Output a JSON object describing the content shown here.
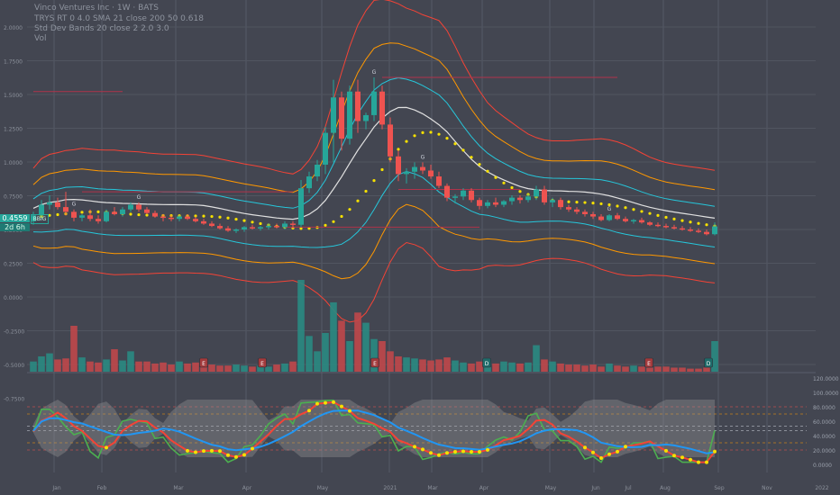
{
  "header": {
    "symbol_line": "Vinco Ventures Inc · 1W · BATS",
    "line2": "TRYS RT 0 4.0 SMA 21 close 200 50 0.618",
    "line3": "Std Dev Bands 20 close 2 2.0 3.0",
    "line4": "Vol"
  },
  "price_tag": {
    "price": "0.4559",
    "ticker": "BBIG",
    "countdown": "2d 6h"
  },
  "colors": {
    "background": "#434651",
    "up": "#26a69a",
    "down": "#ef5350",
    "vol_up": "#2a8a82",
    "vol_down": "#c0474a",
    "band_inner": "#26c6da",
    "band_mid": "#ff9800",
    "band_outer": "#f44336",
    "basis": "#e0e0e0",
    "dots": "#f5e000",
    "osc_green": "#4caf50",
    "osc_red": "#f44336",
    "osc_blue": "#2196f3",
    "osc_cloud": "#9e9e9e"
  },
  "event_marker_letters": [
    "E",
    "E",
    "E",
    "D",
    "E",
    "D"
  ],
  "chart_data": {
    "type": "candlestick",
    "price_axis_labels": [
      "2.0000",
      "1.7500",
      "1.5000",
      "1.2500",
      "1.0000",
      "0.7500",
      "0.5000",
      "0.2500",
      "0.0000",
      "-0.2500",
      "-0.5000",
      "-0.7500"
    ],
    "osc_axis_labels": [
      "120.0000",
      "100.0000",
      "80.0000",
      "60.0000",
      "40.0000",
      "20.0000",
      "0.0000"
    ],
    "time_axis_labels": [
      "Jan",
      "Feb",
      "Mar",
      "Apr",
      "May",
      "2021",
      "Mar",
      "Apr",
      "May",
      "Jun",
      "Jul",
      "Aug",
      "Sep",
      "Nov",
      "2022"
    ],
    "candles": [
      [
        0.5,
        0.58,
        0.47,
        0.55
      ],
      [
        0.55,
        0.68,
        0.52,
        0.64
      ],
      [
        0.64,
        0.72,
        0.6,
        0.66
      ],
      [
        0.66,
        0.7,
        0.6,
        0.62
      ],
      [
        0.62,
        0.75,
        0.55,
        0.58
      ],
      [
        0.58,
        0.6,
        0.5,
        0.53
      ],
      [
        0.53,
        0.56,
        0.5,
        0.55
      ],
      [
        0.55,
        0.6,
        0.5,
        0.52
      ],
      [
        0.52,
        0.55,
        0.48,
        0.5
      ],
      [
        0.5,
        0.6,
        0.49,
        0.58
      ],
      [
        0.58,
        0.62,
        0.55,
        0.56
      ],
      [
        0.56,
        0.62,
        0.54,
        0.6
      ],
      [
        0.6,
        0.66,
        0.58,
        0.64
      ],
      [
        0.64,
        0.66,
        0.58,
        0.6
      ],
      [
        0.6,
        0.62,
        0.56,
        0.57
      ],
      [
        0.57,
        0.59,
        0.53,
        0.54
      ],
      [
        0.54,
        0.56,
        0.5,
        0.53
      ],
      [
        0.53,
        0.55,
        0.5,
        0.52
      ],
      [
        0.52,
        0.55,
        0.5,
        0.54
      ],
      [
        0.54,
        0.56,
        0.51,
        0.52
      ],
      [
        0.52,
        0.54,
        0.49,
        0.5
      ],
      [
        0.5,
        0.52,
        0.47,
        0.48
      ],
      [
        0.48,
        0.5,
        0.45,
        0.46
      ],
      [
        0.46,
        0.48,
        0.43,
        0.44
      ],
      [
        0.44,
        0.46,
        0.41,
        0.42
      ],
      [
        0.42,
        0.44,
        0.4,
        0.43
      ],
      [
        0.43,
        0.46,
        0.41,
        0.45
      ],
      [
        0.45,
        0.47,
        0.43,
        0.44
      ],
      [
        0.44,
        0.46,
        0.42,
        0.45
      ],
      [
        0.45,
        0.48,
        0.43,
        0.46
      ],
      [
        0.46,
        0.48,
        0.44,
        0.45
      ],
      [
        0.45,
        0.5,
        0.43,
        0.48
      ],
      [
        0.48,
        0.5,
        0.44,
        0.47
      ],
      [
        0.47,
        0.85,
        0.45,
        0.78
      ],
      [
        0.78,
        0.92,
        0.74,
        0.88
      ],
      [
        0.88,
        1.02,
        0.84,
        0.98
      ],
      [
        0.98,
        1.3,
        0.9,
        1.25
      ],
      [
        1.25,
        1.7,
        1.0,
        1.55
      ],
      [
        1.55,
        1.6,
        1.1,
        1.2
      ],
      [
        1.2,
        1.65,
        1.15,
        1.6
      ],
      [
        1.6,
        1.7,
        1.25,
        1.35
      ],
      [
        1.35,
        1.42,
        1.28,
        1.4
      ],
      [
        1.4,
        1.72,
        1.35,
        1.6
      ],
      [
        1.6,
        1.65,
        1.28,
        1.32
      ],
      [
        1.32,
        1.38,
        1.0,
        1.05
      ],
      [
        1.05,
        1.1,
        0.84,
        0.9
      ],
      [
        0.9,
        0.95,
        0.82,
        0.92
      ],
      [
        0.92,
        1.0,
        0.86,
        0.96
      ],
      [
        0.96,
        1.0,
        0.9,
        0.93
      ],
      [
        0.93,
        0.98,
        0.86,
        0.88
      ],
      [
        0.88,
        0.92,
        0.78,
        0.8
      ],
      [
        0.8,
        0.82,
        0.67,
        0.7
      ],
      [
        0.7,
        0.73,
        0.65,
        0.71
      ],
      [
        0.71,
        0.78,
        0.68,
        0.76
      ],
      [
        0.76,
        0.78,
        0.66,
        0.68
      ],
      [
        0.68,
        0.7,
        0.6,
        0.63
      ],
      [
        0.63,
        0.68,
        0.61,
        0.66
      ],
      [
        0.66,
        0.7,
        0.62,
        0.64
      ],
      [
        0.64,
        0.68,
        0.62,
        0.67
      ],
      [
        0.67,
        0.72,
        0.64,
        0.7
      ],
      [
        0.7,
        0.72,
        0.65,
        0.68
      ],
      [
        0.68,
        0.73,
        0.66,
        0.71
      ],
      [
        0.71,
        0.8,
        0.68,
        0.77
      ],
      [
        0.77,
        0.8,
        0.64,
        0.66
      ],
      [
        0.66,
        0.7,
        0.62,
        0.68
      ],
      [
        0.68,
        0.7,
        0.6,
        0.62
      ],
      [
        0.62,
        0.64,
        0.58,
        0.6
      ],
      [
        0.6,
        0.62,
        0.56,
        0.58
      ],
      [
        0.58,
        0.6,
        0.54,
        0.56
      ],
      [
        0.56,
        0.58,
        0.52,
        0.54
      ],
      [
        0.54,
        0.56,
        0.5,
        0.51
      ],
      [
        0.51,
        0.56,
        0.5,
        0.55
      ],
      [
        0.55,
        0.57,
        0.51,
        0.52
      ],
      [
        0.52,
        0.54,
        0.49,
        0.5
      ],
      [
        0.5,
        0.52,
        0.48,
        0.51
      ],
      [
        0.51,
        0.53,
        0.48,
        0.49
      ],
      [
        0.49,
        0.5,
        0.46,
        0.47
      ],
      [
        0.47,
        0.49,
        0.45,
        0.46
      ],
      [
        0.46,
        0.48,
        0.44,
        0.45
      ],
      [
        0.45,
        0.47,
        0.43,
        0.44
      ],
      [
        0.44,
        0.46,
        0.42,
        0.43
      ],
      [
        0.43,
        0.45,
        0.41,
        0.42
      ],
      [
        0.42,
        0.44,
        0.4,
        0.41
      ],
      [
        0.41,
        0.43,
        0.38,
        0.39
      ],
      [
        0.39,
        0.49,
        0.38,
        0.4559
      ]
    ],
    "volumes": [
      0.1,
      0.15,
      0.18,
      0.12,
      0.13,
      0.45,
      0.14,
      0.1,
      0.09,
      0.12,
      0.22,
      0.11,
      0.2,
      0.1,
      0.1,
      0.08,
      0.09,
      0.07,
      0.1,
      0.08,
      0.09,
      0.08,
      0.07,
      0.06,
      0.06,
      0.07,
      0.06,
      0.05,
      0.06,
      0.05,
      0.07,
      0.08,
      0.1,
      0.9,
      0.35,
      0.2,
      0.38,
      0.68,
      0.5,
      0.3,
      0.58,
      0.48,
      0.32,
      0.3,
      0.2,
      0.15,
      0.14,
      0.13,
      0.12,
      0.11,
      0.12,
      0.14,
      0.11,
      0.09,
      0.08,
      0.1,
      0.09,
      0.08,
      0.1,
      0.09,
      0.08,
      0.09,
      0.26,
      0.12,
      0.1,
      0.08,
      0.07,
      0.07,
      0.06,
      0.07,
      0.05,
      0.08,
      0.06,
      0.05,
      0.06,
      0.05,
      0.04,
      0.05,
      0.05,
      0.04,
      0.04,
      0.03,
      0.03,
      0.04,
      0.3
    ],
    "letter_markers": [
      [
        5,
        "G"
      ],
      [
        13,
        "G"
      ],
      [
        42,
        "G"
      ],
      [
        48,
        "G"
      ],
      [
        71,
        "G"
      ]
    ],
    "stop_lines": [
      {
        "from": 0,
        "to": 11,
        "y": 1.6
      },
      {
        "from": 6,
        "to": 32,
        "y": 0.75
      },
      {
        "from": 43,
        "to": 72,
        "y": 1.72
      },
      {
        "from": 45,
        "to": 60,
        "y": 0.77
      },
      {
        "from": 31,
        "to": 55,
        "y": 0.45
      }
    ]
  }
}
